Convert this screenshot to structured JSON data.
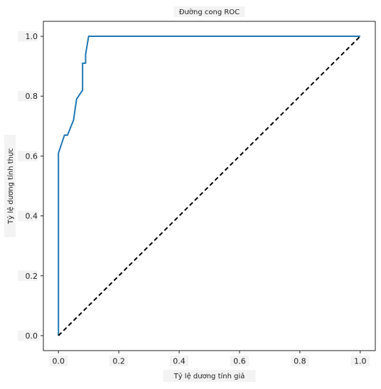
{
  "chart_data": {
    "type": "line",
    "title": "Đường cong ROC",
    "xlabel": "Tỷ lệ dương tính giả",
    "ylabel": "Tỷ lệ dương tính thực",
    "xlim": [
      -0.05,
      1.05
    ],
    "ylim": [
      -0.05,
      1.05
    ],
    "xticks": [
      0.0,
      0.2,
      0.4,
      0.6,
      0.8,
      1.0
    ],
    "yticks": [
      0.0,
      0.2,
      0.4,
      0.6,
      0.8,
      1.0
    ],
    "xtick_labels": [
      "0.0",
      "0.2",
      "0.4",
      "0.6",
      "0.8",
      "1.0"
    ],
    "ytick_labels": [
      "0.0",
      "0.2",
      "0.4",
      "0.6",
      "0.8",
      "1.0"
    ],
    "grid": false,
    "series": [
      {
        "color": "#1f77b4",
        "style": "solid",
        "x": [
          0.0,
          0.0,
          0.0,
          0.02,
          0.03,
          0.05,
          0.06,
          0.08,
          0.08,
          0.09,
          0.09,
          0.1,
          1.0
        ],
        "y": [
          0.0,
          0.02,
          0.61,
          0.67,
          0.67,
          0.72,
          0.79,
          0.82,
          0.91,
          0.91,
          0.94,
          1.0,
          1.0
        ]
      },
      {
        "color": "#000000",
        "style": "dashed",
        "x": [
          0.0,
          1.0
        ],
        "y": [
          0.0,
          1.0
        ]
      }
    ]
  }
}
